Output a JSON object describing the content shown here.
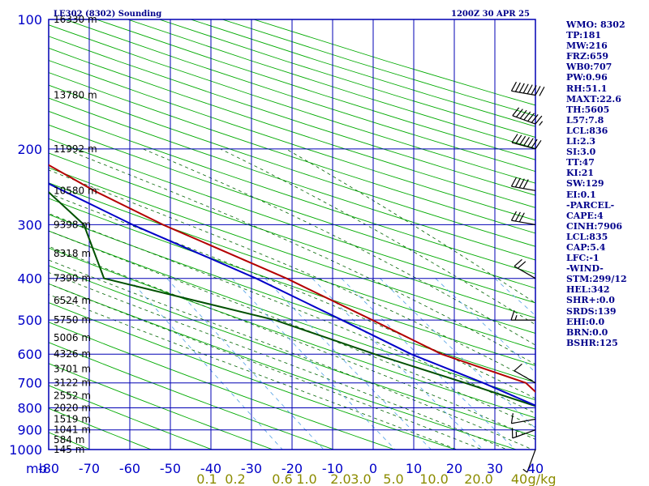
{
  "header": {
    "title": "LE302 (8302) Sounding",
    "datetime": "1200Z 30 APR 25"
  },
  "colors": {
    "frame": "#0000b4",
    "grid": "#0000b4",
    "temperature": "#b40000",
    "dewpoint": "#005000",
    "parcel": "#0000c8",
    "dry_adiabat": "#00aa00",
    "moist_adiabat": "#006400",
    "mixing_ratio": "#50a0e6",
    "axis_text": "#0000c8",
    "mix_text": "#8c8c00"
  },
  "chart_data": {
    "type": "line",
    "subtype": "skew-t",
    "xlabel": "",
    "ylabel": "mb",
    "xlim": [
      -80,
      0
    ],
    "ylim": [
      1000,
      100
    ],
    "y_scale": "log",
    "grid": true,
    "pressure_ticks": [
      100,
      200,
      300,
      400,
      500,
      600,
      700,
      800,
      900,
      1000
    ],
    "temperature_ticks": [
      "-80",
      "-70",
      "-60",
      "-50",
      "-40",
      "-30",
      "-20",
      "-10",
      "0",
      "10",
      "20",
      "30",
      "40"
    ],
    "mixing_ratio_labels": [
      "0.1",
      "0.2",
      "0.6",
      "1.0",
      "2.0",
      "3.0",
      "5.0",
      "10.0",
      "20.0",
      "40",
      "g/kg"
    ],
    "mixing_ratio_values": [
      0.1,
      0.2,
      0.6,
      1.0,
      2.0,
      3.0,
      5.0,
      10.0,
      20.0,
      40.0
    ],
    "height_levels": [
      {
        "p": 100,
        "label": "16330 m"
      },
      {
        "p": 150,
        "label": "13780 m"
      },
      {
        "p": 200,
        "label": "11992 m"
      },
      {
        "p": 250,
        "label": "10580 m"
      },
      {
        "p": 300,
        "label": "9398 m"
      },
      {
        "p": 350,
        "label": "8318 m"
      },
      {
        "p": 400,
        "label": "7390 m"
      },
      {
        "p": 450,
        "label": "6524 m"
      },
      {
        "p": 500,
        "label": "5750 m"
      },
      {
        "p": 550,
        "label": "5006 m"
      },
      {
        "p": 600,
        "label": "4326 m"
      },
      {
        "p": 650,
        "label": "3701 m"
      },
      {
        "p": 700,
        "label": "3122 m"
      },
      {
        "p": 750,
        "label": "2552 m"
      },
      {
        "p": 800,
        "label": "2020 m"
      },
      {
        "p": 850,
        "label": "1519 m"
      },
      {
        "p": 900,
        "label": "1041 m"
      },
      {
        "p": 950,
        "label": "584 m"
      },
      {
        "p": 1000,
        "label": "145 m"
      }
    ],
    "series": [
      {
        "key": "temperature",
        "p": [
          1014,
          1000,
          920,
          850,
          800,
          700,
          600,
          500,
          400,
          300,
          250,
          200,
          175,
          150,
          100
        ],
        "t": [
          22.5,
          22,
          15,
          8,
          7,
          5,
          -6,
          -14,
          -24,
          -39,
          -47,
          -55,
          -64,
          -55,
          -60
        ]
      },
      {
        "key": "dewpoint",
        "p": [
          1000,
          850,
          800,
          700,
          600,
          500,
          400,
          300,
          200,
          175,
          150
        ],
        "t": [
          10,
          8,
          5,
          -5,
          -17,
          -30,
          -54,
          -52,
          -58,
          -58,
          -60
        ]
      },
      {
        "key": "parcel",
        "p": [
          1014,
          1000,
          950,
          900,
          850,
          800,
          700,
          600,
          500,
          400,
          300,
          200,
          175
        ],
        "t": [
          22.5,
          20,
          15,
          10,
          8,
          5,
          -2,
          -11,
          -19,
          -29,
          -44,
          -62,
          -68
        ]
      }
    ],
    "wind_barbs": [
      {
        "p": 150,
        "dir": 280,
        "speed": 80
      },
      {
        "p": 175,
        "dir": 290,
        "speed": 75
      },
      {
        "p": 200,
        "dir": 285,
        "speed": 70
      },
      {
        "p": 250,
        "dir": 280,
        "speed": 40
      },
      {
        "p": 300,
        "dir": 280,
        "speed": 30
      },
      {
        "p": 400,
        "dir": 300,
        "speed": 20
      },
      {
        "p": 500,
        "dir": 270,
        "speed": 15
      },
      {
        "p": 700,
        "dir": 300,
        "speed": 10
      },
      {
        "p": 850,
        "dir": 260,
        "speed": 10
      },
      {
        "p": 900,
        "dir": 250,
        "speed": 15
      },
      {
        "p": 1000,
        "dir": 200,
        "speed": 5
      }
    ]
  },
  "indices": [
    "WMO: 8302",
    "TP:181",
    "MW:216",
    "FRZ:659",
    "WB0:707",
    "PW:0.96",
    "RH:51.1",
    "MAXT:22.6",
    "TH:5605",
    "L57:7.8",
    "LCL:836",
    "LI:2.3",
    "SI:3.0",
    "TT:47",
    "KI:21",
    "SW:129",
    "EI:0.1",
    "-PARCEL-",
    "CAPE:4",
    "CINH:7906",
    "LCL:835",
    "CAP:5.4",
    "LFC:-1",
    "-WIND-",
    "STM:299/12",
    "HEL:342",
    "SHR+:0.0",
    "SRDS:139",
    "EHI:0.0",
    "BRN:0.0",
    "BSHR:125"
  ]
}
